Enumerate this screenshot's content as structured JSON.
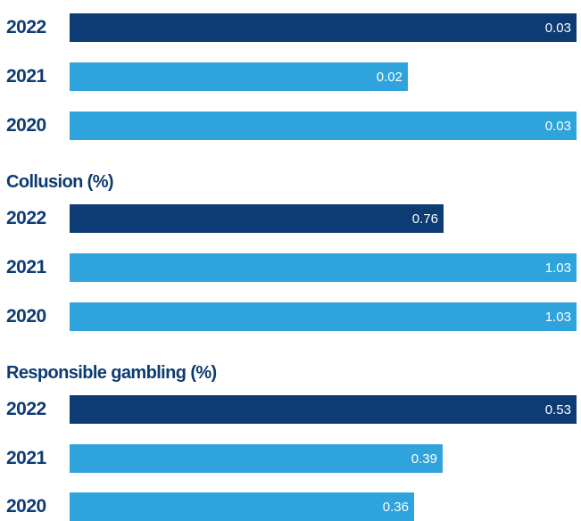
{
  "colors": {
    "current": "#0d3b73",
    "previous": "#2fa3dc",
    "text": "#0d3b73"
  },
  "chart_data": {
    "type": "bar",
    "orientation": "horizontal",
    "xlim": [
      0,
      1.03
    ],
    "groups": [
      {
        "title": "",
        "items": [
          {
            "year": "2022",
            "value": 0.03,
            "label": "0.03",
            "highlight": true
          },
          {
            "year": "2021",
            "value": 0.02,
            "label": "0.02",
            "highlight": false
          },
          {
            "year": "2020",
            "value": 0.03,
            "label": "0.03",
            "highlight": false
          }
        ]
      },
      {
        "title": "Collusion (%)",
        "items": [
          {
            "year": "2022",
            "value": 0.76,
            "label": "0.76",
            "highlight": true
          },
          {
            "year": "2021",
            "value": 1.03,
            "label": "1.03",
            "highlight": false
          },
          {
            "year": "2020",
            "value": 1.03,
            "label": "1.03",
            "highlight": false
          }
        ]
      },
      {
        "title": "Responsible gambling (%)",
        "items": [
          {
            "year": "2022",
            "value": 0.53,
            "label": "0.53",
            "highlight": true
          },
          {
            "year": "2021",
            "value": 0.39,
            "label": "0.39",
            "highlight": false
          },
          {
            "year": "2020",
            "value": 0.36,
            "label": "0.36",
            "highlight": false
          }
        ]
      }
    ]
  }
}
